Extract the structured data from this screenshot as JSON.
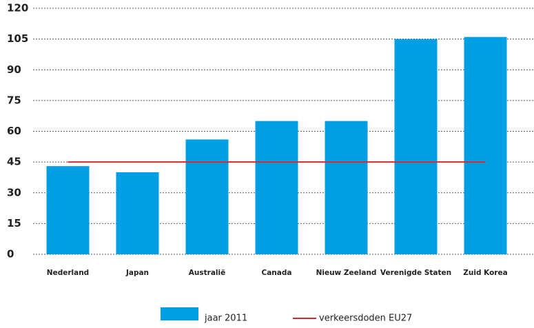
{
  "chart_data": {
    "type": "bar",
    "categories": [
      "Nederland",
      "Japan",
      "Australië",
      "Canada",
      "Nieuw Zeeland",
      "Verenigde Staten",
      "Zuid Korea"
    ],
    "series": [
      {
        "name": "jaar 2011",
        "type": "bar",
        "color": "#009fe3",
        "values": [
          43,
          40,
          56,
          65,
          65,
          105,
          106
        ]
      },
      {
        "name": "verkeersdoden EU27",
        "type": "line",
        "color": "#d7282f",
        "values": [
          45,
          45,
          45,
          45,
          45,
          45,
          45
        ]
      }
    ],
    "ylim": [
      0,
      120
    ],
    "yticks": [
      0,
      15,
      30,
      45,
      60,
      75,
      90,
      105,
      120
    ],
    "grid": true
  }
}
